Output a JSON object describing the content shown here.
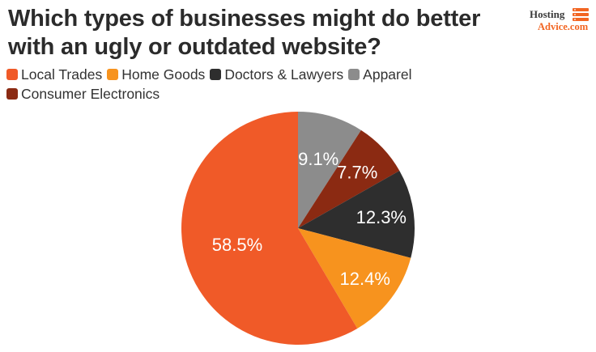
{
  "chart_data": {
    "type": "pie",
    "title": "Which types of businesses might do better with an ugly or outdated website?",
    "categories": [
      "Apparel",
      "Consumer Electronics",
      "Doctors & Lawyers",
      "Home Goods",
      "Local Trades"
    ],
    "values": [
      9.1,
      7.7,
      12.3,
      12.4,
      58.5
    ],
    "labels": [
      "9.1%",
      "7.7%",
      "12.3%",
      "12.4%",
      "58.5%"
    ],
    "colors": [
      "#8c8c8c",
      "#8b2a12",
      "#2e2e2e",
      "#f7931e",
      "#f05a28"
    ],
    "legend": {
      "placement": "top-left",
      "items": [
        {
          "label": "Local Trades",
          "color": "#f05a28"
        },
        {
          "label": "Home Goods",
          "color": "#f7931e"
        },
        {
          "label": "Doctors & Lawyers",
          "color": "#2e2e2e"
        },
        {
          "label": "Apparel",
          "color": "#8c8c8c"
        },
        {
          "label": "Consumer Electronics",
          "color": "#8b2a12"
        }
      ]
    },
    "start_angle": "12 o'clock",
    "direction": "clockwise"
  },
  "brand": {
    "line1": "Hosting",
    "line2": "Advice.com",
    "accent": "#f26522"
  }
}
